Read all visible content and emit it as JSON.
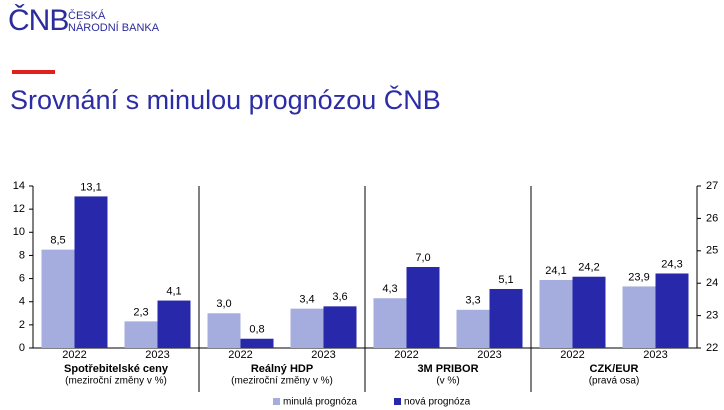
{
  "header": {
    "logo": "ČNB",
    "logo_line1": "ČESKÁ",
    "logo_line2": "NÁRODNÍ BANKA",
    "title": "Srovnání s minulou prognózou ČNB"
  },
  "chart_data": {
    "type": "bar",
    "categories": [
      "2022",
      "2023",
      "2022",
      "2023",
      "2022",
      "2023",
      "2022",
      "2023"
    ],
    "groups": [
      {
        "label": "Spotřebitelské ceny",
        "sublabel": "(meziroční změny v %)"
      },
      {
        "label": "Reálný HDP",
        "sublabel": "(meziroční změny v %)"
      },
      {
        "label": "3M PRIBOR",
        "sublabel": "(v %)"
      },
      {
        "label": "CZK/EUR",
        "sublabel": "(pravá osa)",
        "axis": "y2"
      }
    ],
    "series": [
      {
        "name": "minulá prognóza",
        "color": "#a5addf",
        "values": [
          8.5,
          2.3,
          3.0,
          3.4,
          4.3,
          3.3,
          24.1,
          23.9
        ],
        "value_labels": [
          "8,5",
          "2,3",
          "3,0",
          "3,4",
          "4,3",
          "3,3",
          "24,1",
          "23,9"
        ]
      },
      {
        "name": "nová prognóza",
        "color": "#2828ab",
        "values": [
          13.1,
          4.1,
          0.8,
          3.6,
          7.0,
          5.1,
          24.2,
          24.3
        ],
        "value_labels": [
          "13,1",
          "4,1",
          "0,8",
          "3,6",
          "7,0",
          "5,1",
          "24,2",
          "24,3"
        ]
      }
    ],
    "ylim": [
      0,
      14
    ],
    "yticks": [
      0,
      2,
      4,
      6,
      8,
      10,
      12,
      14
    ],
    "y2lim": [
      22,
      27
    ],
    "y2ticks": [
      22,
      23,
      24,
      25,
      26,
      27
    ]
  }
}
